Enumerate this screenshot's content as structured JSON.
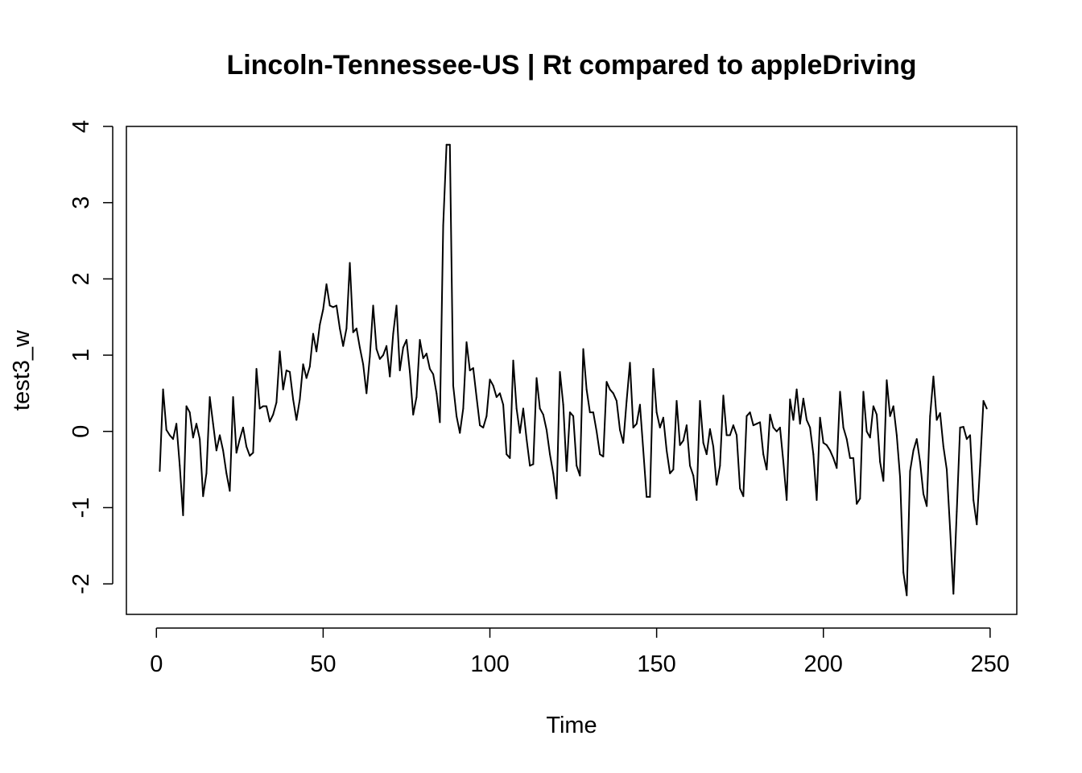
{
  "chart_data": {
    "type": "line",
    "title": "Lincoln-Tennessee-US | Rt compared to appleDriving",
    "xlabel": "Time",
    "ylabel": "test3_w",
    "xlim": [
      -9,
      258
    ],
    "ylim": [
      -2.4,
      4
    ],
    "x_ticks": [
      0,
      50,
      100,
      150,
      200,
      250
    ],
    "y_ticks": [
      -2,
      -1,
      0,
      1,
      2,
      3,
      4
    ],
    "grid": false,
    "legend": "none",
    "line_color": "#000000",
    "series": [
      {
        "x_start": 1,
        "values": [
          -0.52,
          0.55,
          0.02,
          -0.05,
          -0.1,
          0.1,
          -0.45,
          -1.1,
          0.33,
          0.25,
          -0.08,
          0.1,
          -0.1,
          -0.85,
          -0.55,
          0.45,
          0.1,
          -0.25,
          -0.05,
          -0.25,
          -0.55,
          -0.78,
          0.45,
          -0.28,
          -0.1,
          0.05,
          -0.2,
          -0.32,
          -0.28,
          0.82,
          0.3,
          0.33,
          0.33,
          0.13,
          0.22,
          0.38,
          1.05,
          0.55,
          0.8,
          0.78,
          0.42,
          0.15,
          0.42,
          0.88,
          0.7,
          0.85,
          1.28,
          1.05,
          1.4,
          1.6,
          1.93,
          1.65,
          1.63,
          1.65,
          1.35,
          1.12,
          1.35,
          2.21,
          1.3,
          1.35,
          1.1,
          0.88,
          0.5,
          0.98,
          1.65,
          1.08,
          0.95,
          1.0,
          1.12,
          0.72,
          1.28,
          1.65,
          0.8,
          1.1,
          1.2,
          0.78,
          0.22,
          0.45,
          1.2,
          0.96,
          1.02,
          0.82,
          0.75,
          0.5,
          0.12,
          2.7,
          3.76,
          3.76,
          0.6,
          0.2,
          -0.02,
          0.3,
          1.17,
          0.8,
          0.83,
          0.45,
          0.08,
          0.05,
          0.2,
          0.68,
          0.6,
          0.45,
          0.5,
          0.35,
          -0.3,
          -0.35,
          0.93,
          0.3,
          -0.02,
          0.3,
          -0.1,
          -0.45,
          -0.43,
          0.7,
          0.3,
          0.22,
          0.02,
          -0.3,
          -0.55,
          -0.88,
          0.78,
          0.35,
          -0.52,
          0.25,
          0.2,
          -0.45,
          -0.58,
          1.08,
          0.55,
          0.25,
          0.25,
          0.0,
          -0.3,
          -0.33,
          0.65,
          0.55,
          0.5,
          0.4,
          0.02,
          -0.15,
          0.4,
          0.9,
          0.05,
          0.1,
          0.35,
          -0.25,
          -0.86,
          -0.86,
          0.82,
          0.25,
          0.05,
          0.18,
          -0.25,
          -0.55,
          -0.5,
          0.4,
          -0.18,
          -0.12,
          0.08,
          -0.45,
          -0.58,
          -0.9,
          0.4,
          -0.15,
          -0.3,
          0.03,
          -0.2,
          -0.7,
          -0.45,
          0.47,
          -0.05,
          -0.05,
          0.08,
          -0.05,
          -0.75,
          -0.85,
          0.2,
          0.25,
          0.08,
          0.1,
          0.12,
          -0.3,
          -0.5,
          0.22,
          0.05,
          0.0,
          0.05,
          -0.4,
          -0.9,
          0.42,
          0.15,
          0.55,
          0.1,
          0.43,
          0.15,
          0.05,
          -0.3,
          -0.9,
          0.18,
          -0.15,
          -0.18,
          -0.25,
          -0.35,
          -0.48,
          0.52,
          0.05,
          -0.1,
          -0.35,
          -0.35,
          -0.95,
          -0.88,
          0.52,
          0.0,
          -0.08,
          0.33,
          0.22,
          -0.4,
          -0.65,
          0.67,
          0.2,
          0.33,
          -0.05,
          -0.6,
          -1.85,
          -2.15,
          -0.52,
          -0.25,
          -0.1,
          -0.4,
          -0.82,
          -0.98,
          0.2,
          0.72,
          0.15,
          0.24,
          -0.2,
          -0.5,
          -1.28,
          -2.13,
          -1.05,
          0.05,
          0.06,
          -0.1,
          -0.05,
          -0.9,
          -1.22,
          -0.45,
          0.4,
          0.3
        ]
      }
    ]
  }
}
